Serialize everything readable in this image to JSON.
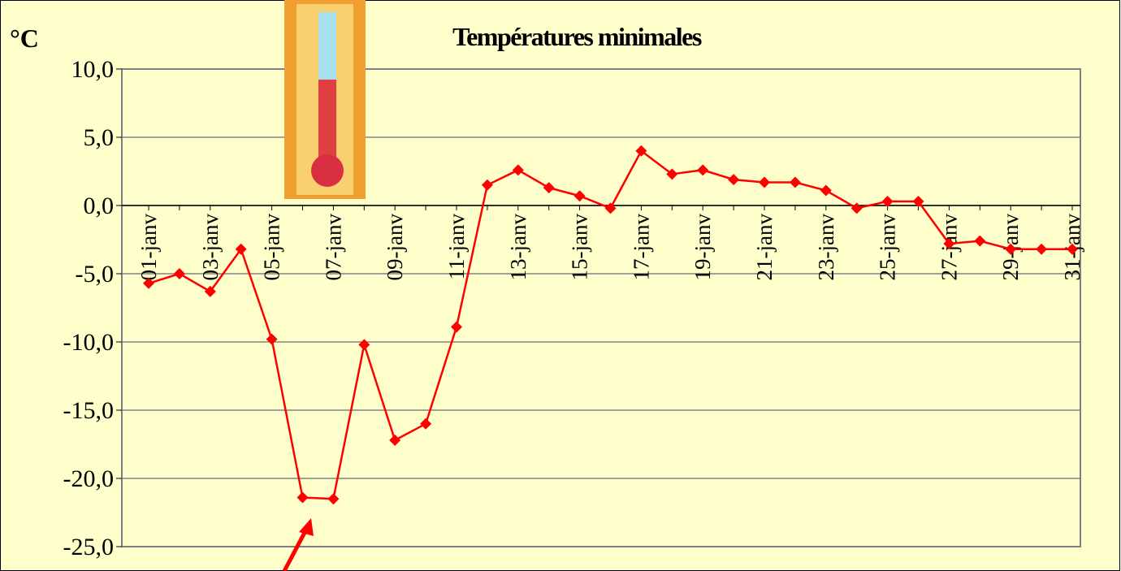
{
  "chart_data": {
    "type": "line",
    "title": "Températures minimales",
    "y_label": "°C",
    "categories": [
      "01-janv",
      null,
      "03-janv",
      null,
      "05-janv",
      null,
      "07-janv",
      null,
      "09-janv",
      null,
      "11-janv",
      null,
      "13-janv",
      null,
      "15-janv",
      null,
      "17-janv",
      null,
      "19-janv",
      null,
      "21-janv",
      null,
      "23-janv",
      null,
      "25-janv",
      null,
      "27-janv",
      null,
      "29-janv",
      null,
      "31-janv"
    ],
    "values": [
      -5.7,
      -5.0,
      -6.3,
      -3.2,
      -9.8,
      -21.4,
      -21.5,
      -10.2,
      -17.2,
      -16.0,
      -8.9,
      1.5,
      2.6,
      1.3,
      0.7,
      -0.2,
      4.0,
      2.3,
      2.6,
      1.9,
      1.7,
      1.7,
      1.1,
      -0.2,
      0.3,
      0.3,
      -2.8,
      -2.6,
      -3.2,
      -3.2,
      -3.2
    ],
    "color": "#ff0000",
    "ylim": [
      -25,
      10
    ],
    "yticks": [
      {
        "value": -25,
        "label": "-25,0"
      },
      {
        "value": -20,
        "label": "-20,0"
      },
      {
        "value": -15,
        "label": "-15,0"
      },
      {
        "value": -10,
        "label": "-10,0"
      },
      {
        "value": -5,
        "label": "-5,0"
      },
      {
        "value": 0,
        "label": "0,0"
      },
      {
        "value": 5,
        "label": "5,0"
      },
      {
        "value": 10,
        "label": "10,0"
      }
    ],
    "grid": true
  }
}
